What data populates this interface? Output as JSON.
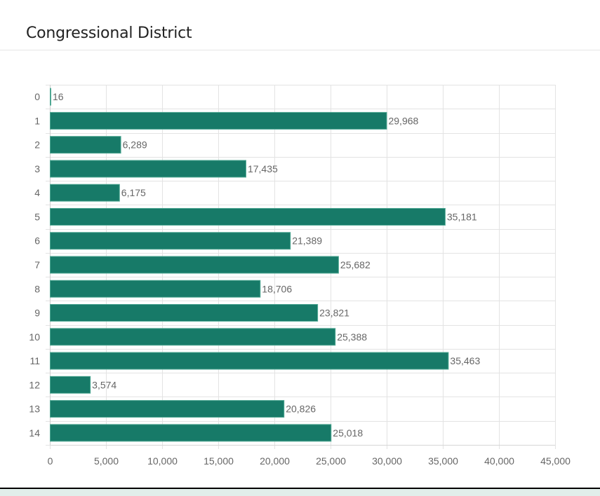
{
  "header": {
    "title": "Congressional District"
  },
  "chart_data": {
    "type": "bar",
    "orientation": "horizontal",
    "title": "Congressional District",
    "xlabel": "",
    "ylabel": "",
    "categories": [
      "0",
      "1",
      "2",
      "3",
      "4",
      "5",
      "6",
      "7",
      "8",
      "9",
      "10",
      "11",
      "12",
      "13",
      "14"
    ],
    "values": [
      16,
      29968,
      6289,
      17435,
      6175,
      35181,
      21389,
      25682,
      18706,
      23821,
      25388,
      35463,
      3574,
      20826,
      25018
    ],
    "data_labels": [
      "16",
      "29,968",
      "6,289",
      "17,435",
      "6,175",
      "35,181",
      "21,389",
      "25,682",
      "18,706",
      "23,821",
      "25,388",
      "35,463",
      "3,574",
      "20,826",
      "25,018"
    ],
    "xlim": [
      0,
      45000
    ],
    "x_ticks": [
      0,
      5000,
      10000,
      15000,
      20000,
      25000,
      30000,
      35000,
      40000,
      45000
    ],
    "x_tick_labels": [
      "0",
      "5,000",
      "10,000",
      "15,000",
      "20,000",
      "25,000",
      "30,000",
      "35,000",
      "40,000",
      "45,000"
    ],
    "grid": true,
    "legend": "none",
    "colors": {
      "bar": "#177a68",
      "bar_edge": "#4fa893",
      "grid": "#e3e3e3",
      "text": "#666666"
    }
  }
}
